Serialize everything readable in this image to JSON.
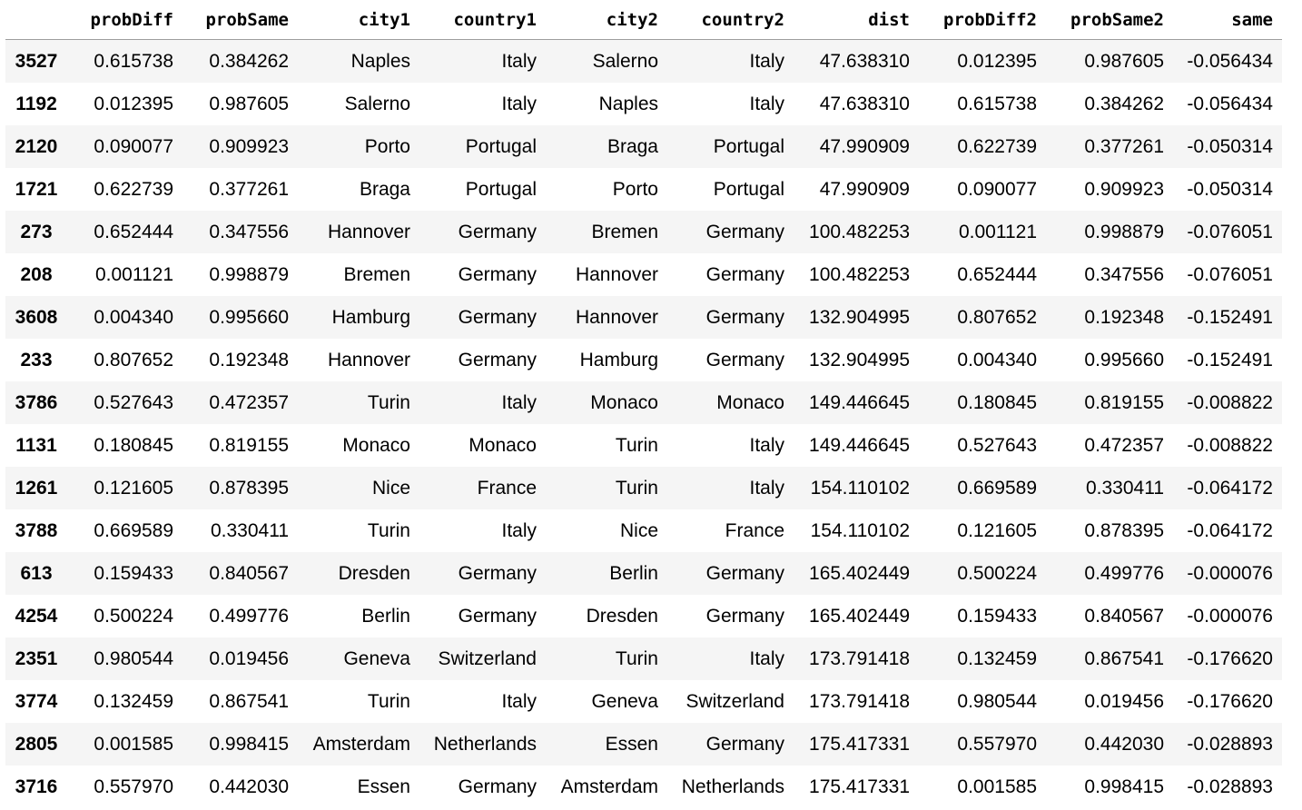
{
  "table": {
    "columns": [
      "",
      "probDiff",
      "probSame",
      "city1",
      "country1",
      "city2",
      "country2",
      "dist",
      "probDiff2",
      "probSame2",
      "same"
    ],
    "rows": [
      {
        "index": "3527",
        "probDiff": "0.615738",
        "probSame": "0.384262",
        "city1": "Naples",
        "country1": "Italy",
        "city2": "Salerno",
        "country2": "Italy",
        "dist": "47.638310",
        "probDiff2": "0.012395",
        "probSame2": "0.987605",
        "same": "-0.056434"
      },
      {
        "index": "1192",
        "probDiff": "0.012395",
        "probSame": "0.987605",
        "city1": "Salerno",
        "country1": "Italy",
        "city2": "Naples",
        "country2": "Italy",
        "dist": "47.638310",
        "probDiff2": "0.615738",
        "probSame2": "0.384262",
        "same": "-0.056434"
      },
      {
        "index": "2120",
        "probDiff": "0.090077",
        "probSame": "0.909923",
        "city1": "Porto",
        "country1": "Portugal",
        "city2": "Braga",
        "country2": "Portugal",
        "dist": "47.990909",
        "probDiff2": "0.622739",
        "probSame2": "0.377261",
        "same": "-0.050314"
      },
      {
        "index": "1721",
        "probDiff": "0.622739",
        "probSame": "0.377261",
        "city1": "Braga",
        "country1": "Portugal",
        "city2": "Porto",
        "country2": "Portugal",
        "dist": "47.990909",
        "probDiff2": "0.090077",
        "probSame2": "0.909923",
        "same": "-0.050314"
      },
      {
        "index": "273",
        "probDiff": "0.652444",
        "probSame": "0.347556",
        "city1": "Hannover",
        "country1": "Germany",
        "city2": "Bremen",
        "country2": "Germany",
        "dist": "100.482253",
        "probDiff2": "0.001121",
        "probSame2": "0.998879",
        "same": "-0.076051"
      },
      {
        "index": "208",
        "probDiff": "0.001121",
        "probSame": "0.998879",
        "city1": "Bremen",
        "country1": "Germany",
        "city2": "Hannover",
        "country2": "Germany",
        "dist": "100.482253",
        "probDiff2": "0.652444",
        "probSame2": "0.347556",
        "same": "-0.076051"
      },
      {
        "index": "3608",
        "probDiff": "0.004340",
        "probSame": "0.995660",
        "city1": "Hamburg",
        "country1": "Germany",
        "city2": "Hannover",
        "country2": "Germany",
        "dist": "132.904995",
        "probDiff2": "0.807652",
        "probSame2": "0.192348",
        "same": "-0.152491"
      },
      {
        "index": "233",
        "probDiff": "0.807652",
        "probSame": "0.192348",
        "city1": "Hannover",
        "country1": "Germany",
        "city2": "Hamburg",
        "country2": "Germany",
        "dist": "132.904995",
        "probDiff2": "0.004340",
        "probSame2": "0.995660",
        "same": "-0.152491"
      },
      {
        "index": "3786",
        "probDiff": "0.527643",
        "probSame": "0.472357",
        "city1": "Turin",
        "country1": "Italy",
        "city2": "Monaco",
        "country2": "Monaco",
        "dist": "149.446645",
        "probDiff2": "0.180845",
        "probSame2": "0.819155",
        "same": "-0.008822"
      },
      {
        "index": "1131",
        "probDiff": "0.180845",
        "probSame": "0.819155",
        "city1": "Monaco",
        "country1": "Monaco",
        "city2": "Turin",
        "country2": "Italy",
        "dist": "149.446645",
        "probDiff2": "0.527643",
        "probSame2": "0.472357",
        "same": "-0.008822"
      },
      {
        "index": "1261",
        "probDiff": "0.121605",
        "probSame": "0.878395",
        "city1": "Nice",
        "country1": "France",
        "city2": "Turin",
        "country2": "Italy",
        "dist": "154.110102",
        "probDiff2": "0.669589",
        "probSame2": "0.330411",
        "same": "-0.064172"
      },
      {
        "index": "3788",
        "probDiff": "0.669589",
        "probSame": "0.330411",
        "city1": "Turin",
        "country1": "Italy",
        "city2": "Nice",
        "country2": "France",
        "dist": "154.110102",
        "probDiff2": "0.121605",
        "probSame2": "0.878395",
        "same": "-0.064172"
      },
      {
        "index": "613",
        "probDiff": "0.159433",
        "probSame": "0.840567",
        "city1": "Dresden",
        "country1": "Germany",
        "city2": "Berlin",
        "country2": "Germany",
        "dist": "165.402449",
        "probDiff2": "0.500224",
        "probSame2": "0.499776",
        "same": "-0.000076"
      },
      {
        "index": "4254",
        "probDiff": "0.500224",
        "probSame": "0.499776",
        "city1": "Berlin",
        "country1": "Germany",
        "city2": "Dresden",
        "country2": "Germany",
        "dist": "165.402449",
        "probDiff2": "0.159433",
        "probSame2": "0.840567",
        "same": "-0.000076"
      },
      {
        "index": "2351",
        "probDiff": "0.980544",
        "probSame": "0.019456",
        "city1": "Geneva",
        "country1": "Switzerland",
        "city2": "Turin",
        "country2": "Italy",
        "dist": "173.791418",
        "probDiff2": "0.132459",
        "probSame2": "0.867541",
        "same": "-0.176620"
      },
      {
        "index": "3774",
        "probDiff": "0.132459",
        "probSame": "0.867541",
        "city1": "Turin",
        "country1": "Italy",
        "city2": "Geneva",
        "country2": "Switzerland",
        "dist": "173.791418",
        "probDiff2": "0.980544",
        "probSame2": "0.019456",
        "same": "-0.176620"
      },
      {
        "index": "2805",
        "probDiff": "0.001585",
        "probSame": "0.998415",
        "city1": "Amsterdam",
        "country1": "Netherlands",
        "city2": "Essen",
        "country2": "Germany",
        "dist": "175.417331",
        "probDiff2": "0.557970",
        "probSame2": "0.442030",
        "same": "-0.028893"
      },
      {
        "index": "3716",
        "probDiff": "0.557970",
        "probSame": "0.442030",
        "city1": "Essen",
        "country1": "Germany",
        "city2": "Amsterdam",
        "country2": "Netherlands",
        "dist": "175.417331",
        "probDiff2": "0.001585",
        "probSame2": "0.998415",
        "same": "-0.028893"
      }
    ]
  }
}
